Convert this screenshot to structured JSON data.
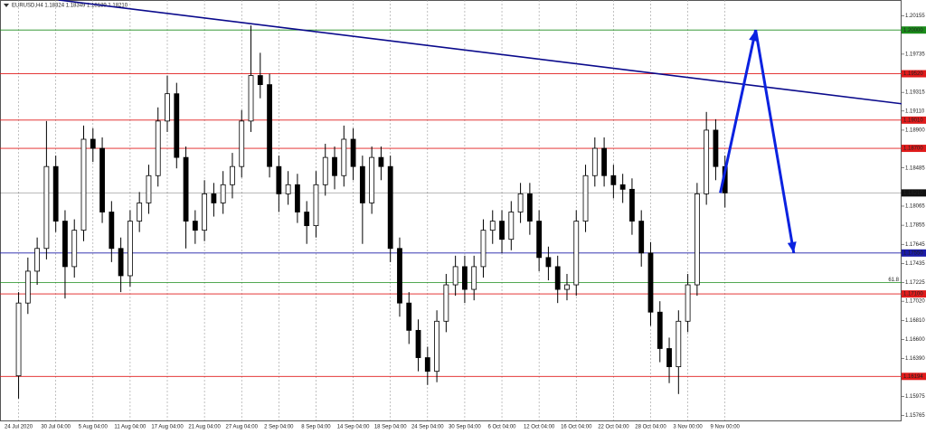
{
  "chart_data": {
    "type": "candlestick",
    "title": "EURUSD,H4  1.18324 1.18349 1.18189 1.18210",
    "categories": [
      "24 Jul 2020",
      null,
      null,
      null,
      "30 Jul 04:00",
      null,
      null,
      null,
      "5 Aug 04:00",
      null,
      null,
      null,
      "11 Aug 04:00",
      null,
      null,
      null,
      "17 Aug 04:00",
      null,
      null,
      null,
      "21 Aug 04:00",
      null,
      null,
      null,
      "27 Aug 04:00",
      null,
      null,
      null,
      "2 Sep 04:00",
      null,
      null,
      null,
      "8 Sep 04:00",
      null,
      null,
      null,
      "14 Sep 04:00",
      null,
      null,
      null,
      "18 Sep 04:00",
      null,
      null,
      null,
      "24 Sep 04:00",
      null,
      null,
      null,
      "30 Sep 04:00",
      null,
      null,
      null,
      "6 Oct 04:00",
      null,
      null,
      null,
      "12 Oct 04:00",
      null,
      null,
      null,
      "16 Oct 04:00",
      null,
      null,
      null,
      "22 Oct 04:00",
      null,
      null,
      null,
      "28 Oct 04:00",
      null,
      null,
      null,
      "3 Nov 00:00",
      null,
      null,
      null,
      "9 Nov 00:00"
    ],
    "open": [
      1.162,
      1.17,
      1.1735,
      1.176,
      1.185,
      1.179,
      1.174,
      1.178,
      1.188,
      1.187,
      1.18,
      1.176,
      1.173,
      1.179,
      1.181,
      1.184,
      1.19,
      1.193,
      1.186,
      1.179,
      1.178,
      1.182,
      1.181,
      1.183,
      1.185,
      1.19,
      1.195,
      1.194,
      1.185,
      1.182,
      1.183,
      1.18,
      1.1785,
      1.183,
      1.186,
      1.184,
      1.188,
      1.185,
      1.181,
      1.186,
      1.185,
      1.176,
      1.17,
      1.167,
      1.164,
      1.1625,
      1.168,
      1.172,
      1.174,
      1.1715,
      1.174,
      1.178,
      1.179,
      1.177,
      1.18,
      1.182,
      1.179,
      1.175,
      1.174,
      1.1715,
      1.172,
      1.179,
      1.184,
      1.187,
      1.184,
      1.183,
      1.1825,
      1.179,
      1.1755,
      1.169,
      1.165,
      1.163,
      1.168,
      1.172,
      1.182,
      1.189,
      1.185
    ],
    "high": [
      1.1712,
      1.175,
      1.1772,
      1.19,
      1.1862,
      1.1802,
      1.1792,
      1.1895,
      1.1892,
      1.1882,
      1.1812,
      1.1772,
      1.1802,
      1.1822,
      1.1852,
      1.1915,
      1.195,
      1.1942,
      1.1872,
      1.1802,
      1.1835,
      1.1832,
      1.1845,
      1.1865,
      1.1912,
      1.2005,
      1.1975,
      1.1952,
      1.1862,
      1.1845,
      1.1842,
      1.1812,
      1.1845,
      1.1875,
      1.1872,
      1.1895,
      1.1892,
      1.1862,
      1.1872,
      1.1872,
      1.1862,
      1.1772,
      1.1712,
      1.1682,
      1.1652,
      1.1692,
      1.1732,
      1.1752,
      1.1752,
      1.1752,
      1.1792,
      1.1802,
      1.1802,
      1.1812,
      1.1832,
      1.1832,
      1.1802,
      1.1762,
      1.1752,
      1.1732,
      1.1802,
      1.1852,
      1.1882,
      1.1882,
      1.1852,
      1.1842,
      1.1837,
      1.1802,
      1.1767,
      1.1702,
      1.1662,
      1.1692,
      1.1732,
      1.1832,
      1.191,
      1.1902,
      1.1862
    ],
    "low": [
      1.1595,
      1.1688,
      1.172,
      1.1748,
      1.1778,
      1.1705,
      1.1728,
      1.1768,
      1.1855,
      1.1788,
      1.1745,
      1.1712,
      1.1718,
      1.1778,
      1.1798,
      1.1828,
      1.1888,
      1.1848,
      1.176,
      1.1765,
      1.1768,
      1.1795,
      1.1798,
      1.1815,
      1.1838,
      1.1888,
      1.1925,
      1.1838,
      1.18,
      1.1808,
      1.1788,
      1.1765,
      1.1772,
      1.1818,
      1.1825,
      1.1828,
      1.1835,
      1.1765,
      1.1798,
      1.1835,
      1.1745,
      1.1685,
      1.1655,
      1.1625,
      1.161,
      1.1613,
      1.1668,
      1.1708,
      1.17,
      1.1703,
      1.1728,
      1.1765,
      1.1755,
      1.1758,
      1.1788,
      1.1775,
      1.1735,
      1.1725,
      1.17,
      1.1703,
      1.1708,
      1.1778,
      1.1828,
      1.1828,
      1.1815,
      1.181,
      1.1775,
      1.174,
      1.1675,
      1.1635,
      1.1612,
      1.16,
      1.1668,
      1.1708,
      1.1808,
      1.1835,
      1.1805
    ],
    "close": [
      1.17,
      1.1735,
      1.176,
      1.185,
      1.179,
      1.174,
      1.178,
      1.188,
      1.187,
      1.18,
      1.176,
      1.173,
      1.179,
      1.181,
      1.184,
      1.19,
      1.193,
      1.186,
      1.179,
      1.178,
      1.182,
      1.181,
      1.183,
      1.185,
      1.19,
      1.195,
      1.194,
      1.185,
      1.182,
      1.183,
      1.18,
      1.1785,
      1.183,
      1.186,
      1.184,
      1.188,
      1.185,
      1.181,
      1.186,
      1.185,
      1.176,
      1.17,
      1.167,
      1.164,
      1.1625,
      1.168,
      1.172,
      1.174,
      1.1715,
      1.174,
      1.178,
      1.179,
      1.177,
      1.18,
      1.182,
      1.179,
      1.175,
      1.174,
      1.1715,
      1.172,
      1.179,
      1.184,
      1.187,
      1.184,
      1.183,
      1.1825,
      1.179,
      1.1755,
      1.169,
      1.165,
      1.163,
      1.168,
      1.172,
      1.182,
      1.189,
      1.185,
      1.1821
    ],
    "xlim": [
      -2,
      95
    ],
    "ylim": [
      1.1571,
      1.2033
    ],
    "yticks": [
      1.20155,
      1.19735,
      {
        "value": 1.19315,
        "label": "1.19315"
      },
      {
        "value": 1.1911,
        "label": "1.19110"
      },
      {
        "value": 1.189,
        "label": "1.18900"
      },
      1.18485,
      1.18065,
      1.17855,
      1.17645,
      1.17435,
      1.17225,
      {
        "value": 1.1702,
        "label": "1.17020"
      },
      {
        "value": 1.1681,
        "label": "1.16810"
      },
      {
        "value": 1.166,
        "label": "1.16600"
      },
      {
        "value": 1.1639,
        "label": "1.16390"
      },
      1.16185,
      1.15975,
      1.15765
    ],
    "levels": [
      {
        "value": 1.2,
        "label": "1.20000",
        "color": "#1a8c1a"
      },
      {
        "value": 1.1952,
        "label": "1.19520",
        "color": "#e01b1b"
      },
      {
        "value": 1.1901,
        "label": "1.19010",
        "color": "#e01b1b"
      },
      {
        "value": 1.187,
        "label": "1.18700",
        "color": "#e01b1b"
      },
      {
        "value": 1.1821,
        "label": "1.18210",
        "color": "#111111"
      },
      {
        "value": 1.1755,
        "label": "1.17550",
        "color": "#1c1ca8"
      },
      {
        "value": 1.171,
        "label": "1.17100",
        "color": "#e01b1b"
      },
      {
        "value": 1.16194,
        "label": "1.16194",
        "color": "#e01b1b"
      }
    ],
    "fib_level": {
      "value": 1.17225,
      "label": "61.8",
      "color": "#1a8c1a"
    },
    "trend_line": {
      "x": [
        4.3,
        95
      ],
      "y": [
        1.2033,
        1.1919
      ],
      "color": "#0a0a8c"
    },
    "forecast_arrow": {
      "x": [
        75.5,
        79.3,
        83.4
      ],
      "y": [
        1.1821,
        1.2,
        1.1755
      ],
      "color": "#0b22e0"
    },
    "grid": true
  }
}
